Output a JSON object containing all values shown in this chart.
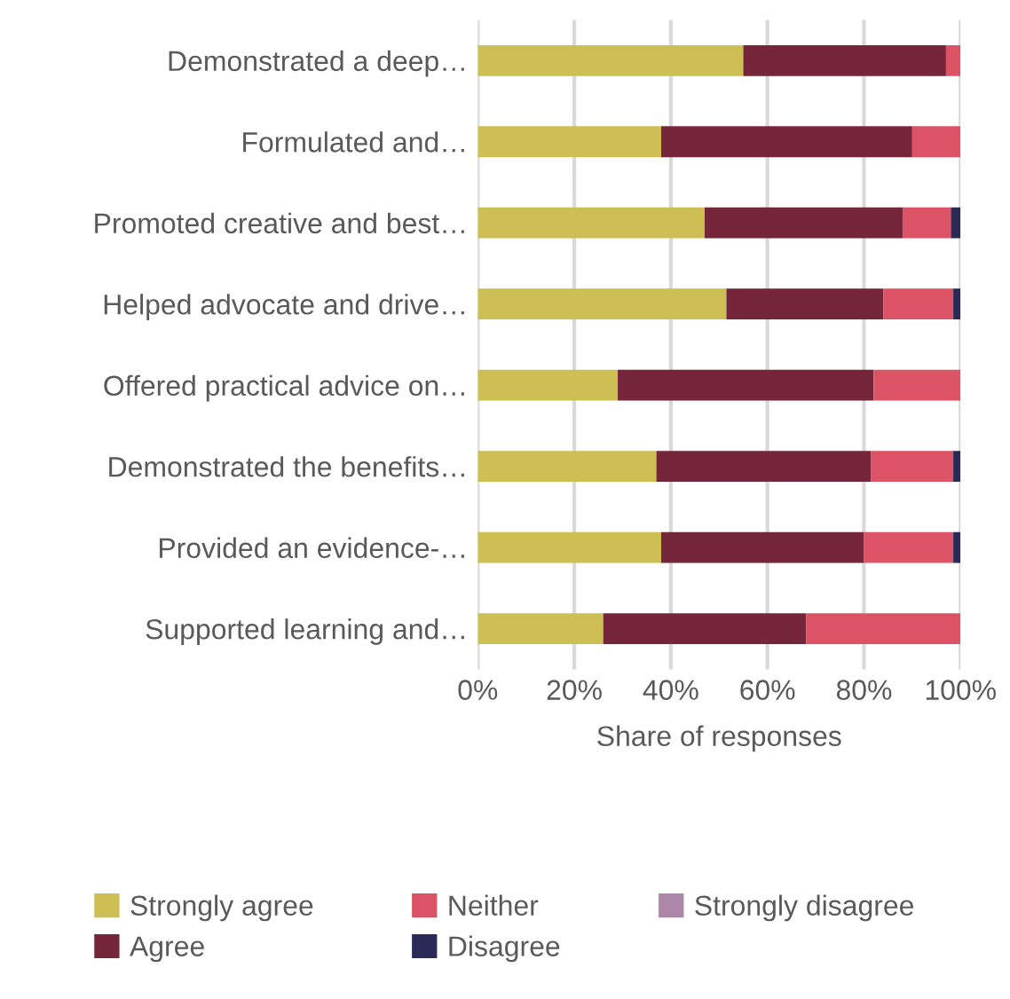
{
  "chart_data": {
    "type": "bar",
    "orientation": "horizontal",
    "stacked": true,
    "xlabel": "Share of responses",
    "categories": [
      "Demonstrated a deep…",
      "Formulated and…",
      "Promoted creative and best…",
      "Helped advocate and drive…",
      "Offered practical advice on…",
      "Demonstrated the benefits…",
      "Provided an evidence-…",
      "Supported learning and…"
    ],
    "series": [
      {
        "name": "Strongly agree",
        "color": "#cdbf53",
        "values": [
          55,
          38,
          47,
          51.5,
          29,
          37,
          38,
          26
        ]
      },
      {
        "name": "Agree",
        "color": "#76263b",
        "values": [
          42,
          52,
          41,
          32.5,
          53,
          44.5,
          42,
          42
        ]
      },
      {
        "name": "Neither",
        "color": "#db5364",
        "values": [
          3,
          10,
          10,
          14.5,
          18,
          17,
          18.5,
          32
        ]
      },
      {
        "name": "Disagree",
        "color": "#2b2955",
        "values": [
          0,
          0,
          2,
          1.5,
          0,
          1.5,
          1.5,
          0
        ]
      },
      {
        "name": "Strongly disagree",
        "color": "#ad87a8",
        "values": [
          0,
          0,
          0,
          0,
          0,
          0,
          0,
          0
        ]
      }
    ],
    "xlim": [
      0,
      100
    ],
    "xticks": [
      {
        "value": 0,
        "label": "0%"
      },
      {
        "value": 20,
        "label": "20%"
      },
      {
        "value": 40,
        "label": "40%"
      },
      {
        "value": 60,
        "label": "60%"
      },
      {
        "value": 80,
        "label": "80%"
      },
      {
        "value": 100,
        "label": "100%"
      }
    ],
    "grid": "x",
    "legend": "bottom"
  }
}
